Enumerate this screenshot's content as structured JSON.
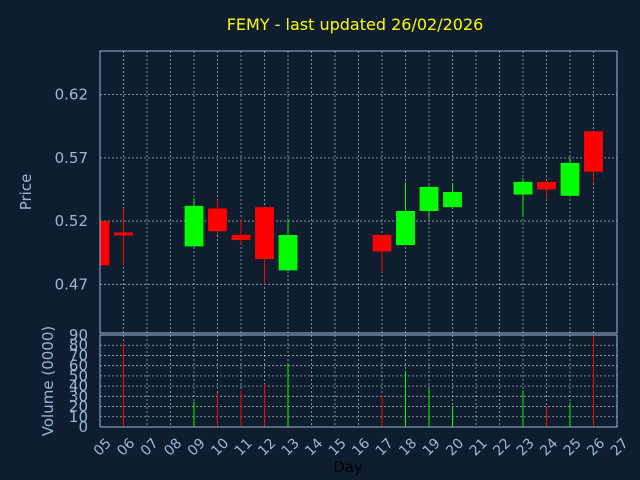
{
  "chart_data": {
    "type": "candlestick",
    "title": "FEMY - last updated 26/02/2026",
    "xlabel": "Day",
    "price_ylabel": "Price",
    "volume_ylabel": "Volume (0000)",
    "x_ticks": [
      "05",
      "06",
      "07",
      "08",
      "09",
      "10",
      "11",
      "12",
      "13",
      "14",
      "15",
      "16",
      "17",
      "18",
      "19",
      "20",
      "21",
      "22",
      "23",
      "24",
      "25",
      "26",
      "27"
    ],
    "price_ticks": [
      "0.47",
      "0.52",
      "0.57",
      "0.62"
    ],
    "price_tick_values": [
      0.47,
      0.52,
      0.57,
      0.62
    ],
    "price_ylim": [
      0.4315,
      0.6545
    ],
    "volume_ticks": [
      "0",
      "10",
      "20",
      "30",
      "40",
      "50",
      "60",
      "70",
      "80",
      "90"
    ],
    "volume_tick_values": [
      0,
      10,
      20,
      30,
      40,
      50,
      60,
      70,
      80,
      90
    ],
    "volume_ylim": [
      0,
      90
    ],
    "grid": true,
    "colors": {
      "background": "#0f1e2e",
      "up": "#00ff00",
      "down": "#ff0000",
      "title": "#ffff00",
      "axis_text": "#9ab8d4"
    },
    "candles": [
      {
        "day": "05",
        "open": 0.52,
        "high": 0.52,
        "low": 0.485,
        "close": 0.485,
        "volume": 0
      },
      {
        "day": "06",
        "open": 0.511,
        "high": 0.53,
        "low": 0.485,
        "close": 0.509,
        "volume": 82
      },
      {
        "day": "09",
        "open": 0.5,
        "high": 0.538,
        "low": 0.5,
        "close": 0.532,
        "volume": 25
      },
      {
        "day": "10",
        "open": 0.53,
        "high": 0.537,
        "low": 0.509,
        "close": 0.512,
        "volume": 33
      },
      {
        "day": "11",
        "open": 0.509,
        "high": 0.522,
        "low": 0.502,
        "close": 0.505,
        "volume": 36
      },
      {
        "day": "12",
        "open": 0.531,
        "high": 0.531,
        "low": 0.47,
        "close": 0.49,
        "volume": 42
      },
      {
        "day": "13",
        "open": 0.481,
        "high": 0.522,
        "low": 0.481,
        "close": 0.509,
        "volume": 61
      },
      {
        "day": "17",
        "open": 0.509,
        "high": 0.509,
        "low": 0.48,
        "close": 0.496,
        "volume": 31
      },
      {
        "day": "18",
        "open": 0.501,
        "high": 0.551,
        "low": 0.501,
        "close": 0.528,
        "volume": 55
      },
      {
        "day": "19",
        "open": 0.528,
        "high": 0.548,
        "low": 0.522,
        "close": 0.547,
        "volume": 37
      },
      {
        "day": "20",
        "open": 0.531,
        "high": 0.549,
        "low": 0.531,
        "close": 0.543,
        "volume": 18
      },
      {
        "day": "23",
        "open": 0.541,
        "high": 0.554,
        "low": 0.524,
        "close": 0.551,
        "volume": 36
      },
      {
        "day": "24",
        "open": 0.551,
        "high": 0.551,
        "low": 0.538,
        "close": 0.545,
        "volume": 20
      },
      {
        "day": "25",
        "open": 0.54,
        "high": 0.57,
        "low": 0.54,
        "close": 0.566,
        "volume": 24
      },
      {
        "day": "26",
        "open": 0.591,
        "high": 0.591,
        "low": 0.55,
        "close": 0.559,
        "volume": 90
      }
    ]
  }
}
